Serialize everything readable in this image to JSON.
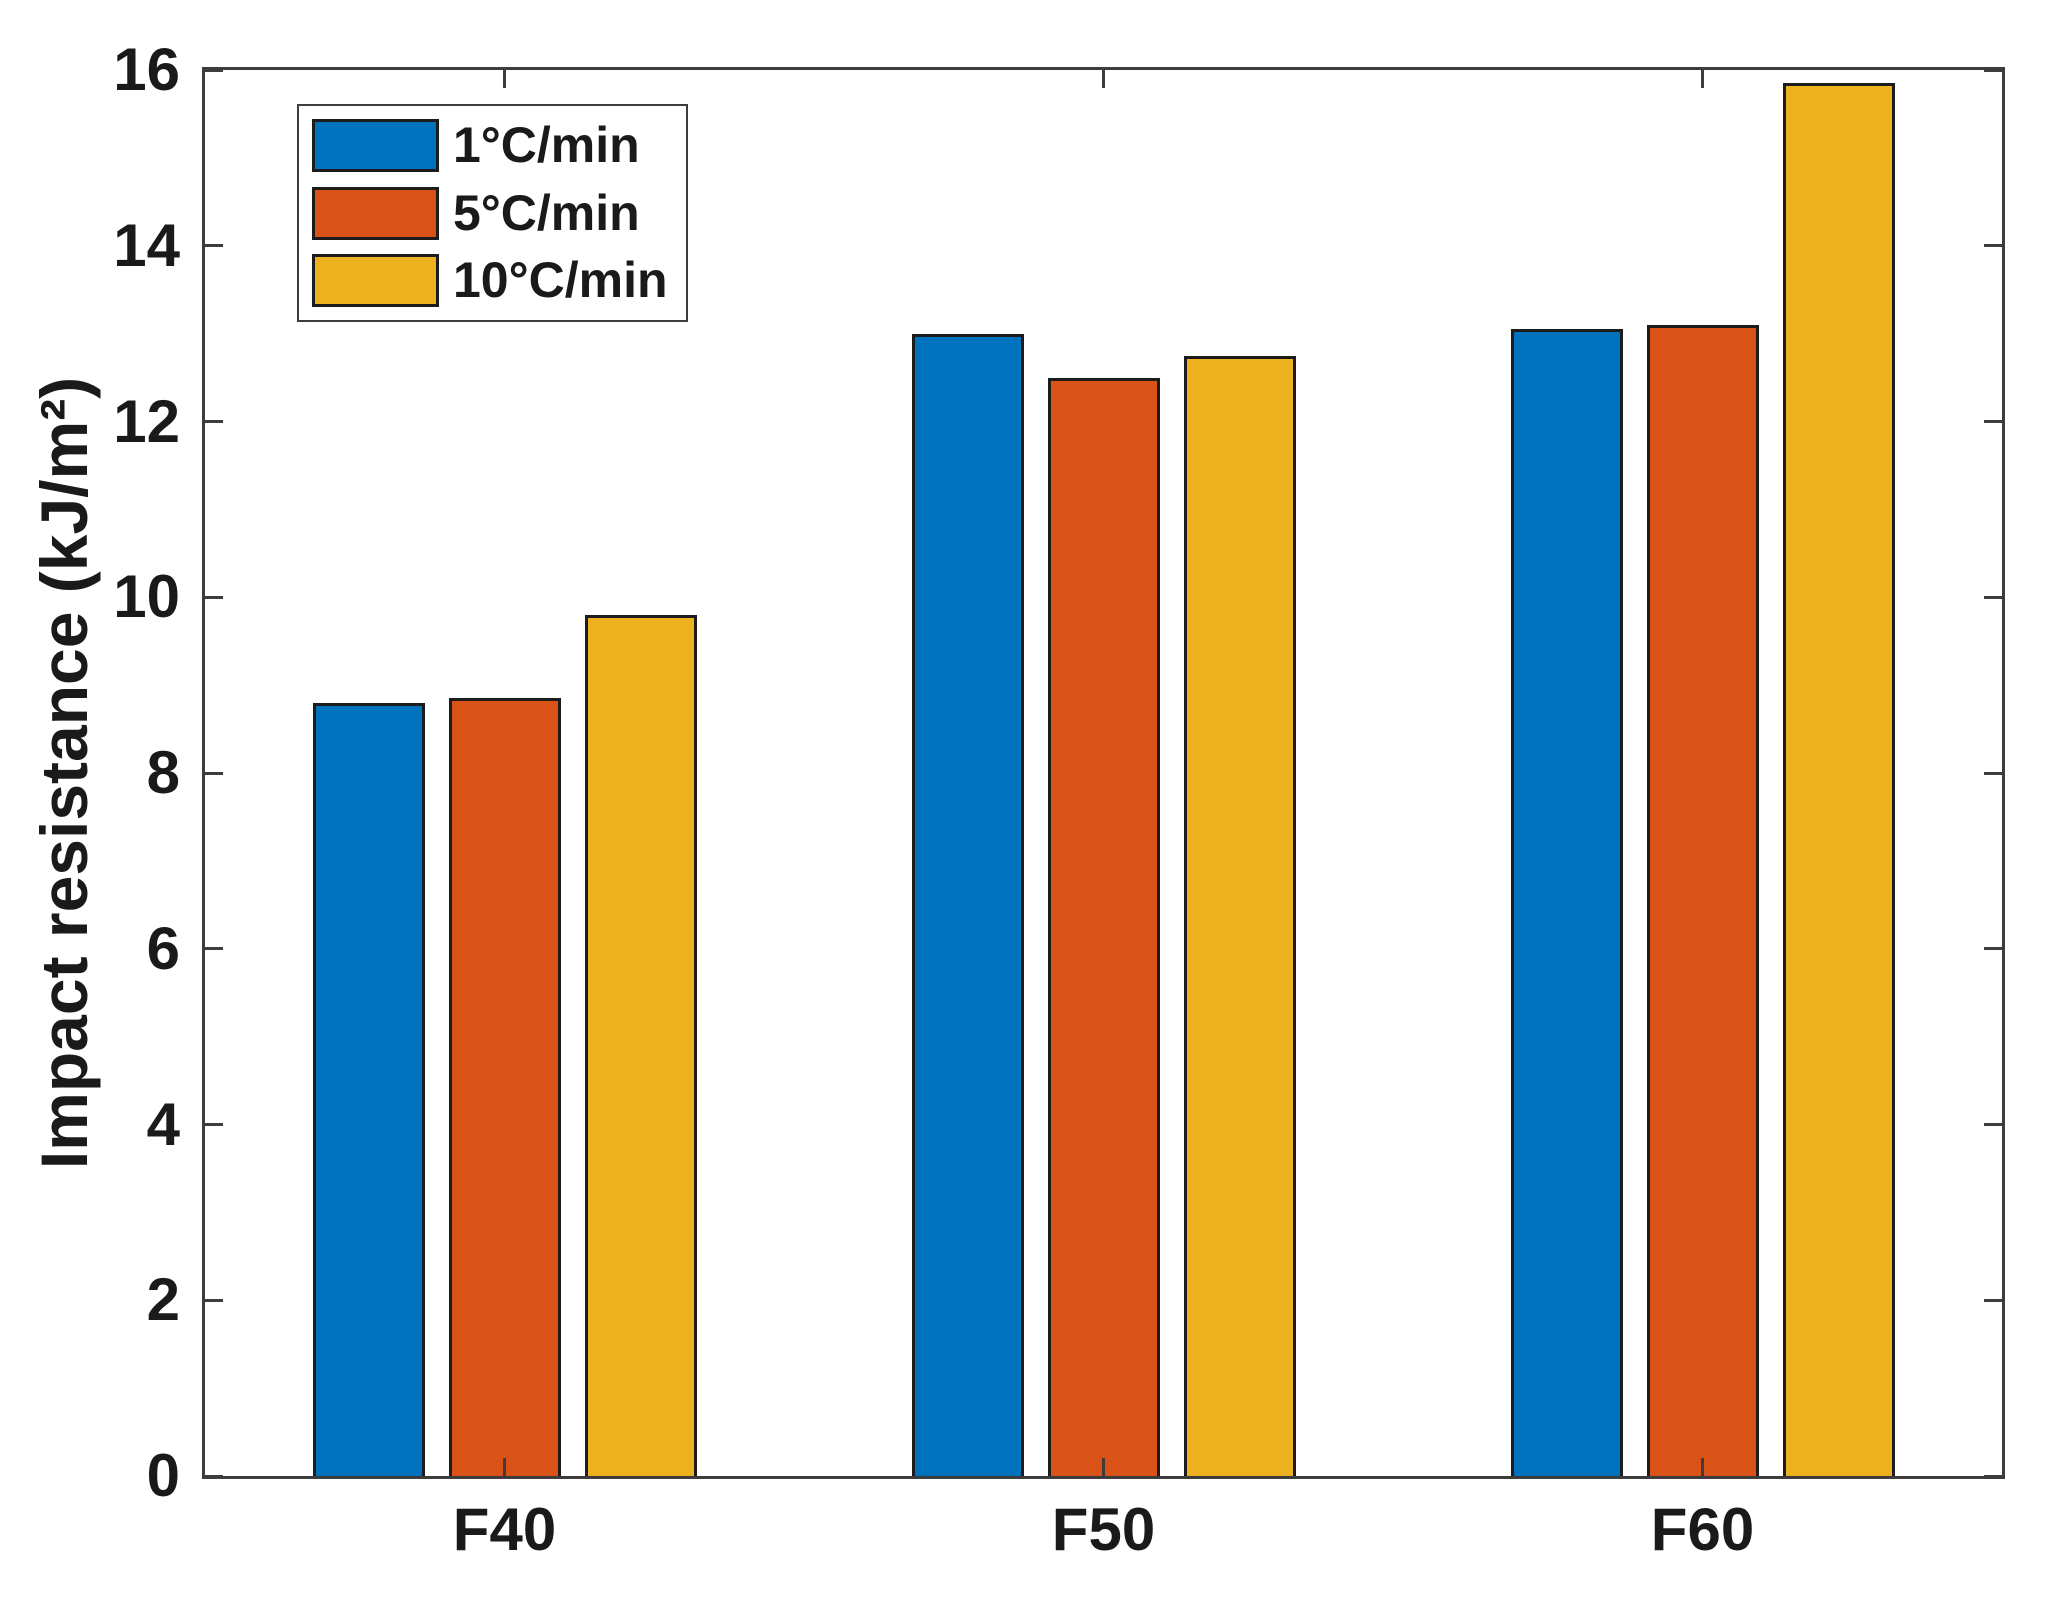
{
  "figure": {
    "background": "#ffffff"
  },
  "chart_data": {
    "type": "bar",
    "title": "",
    "xlabel": "",
    "ylabel": "Impact resistance (kJ/m²)",
    "categories": [
      "F40",
      "F50",
      "F60"
    ],
    "series": [
      {
        "name": "1°C/min",
        "color": "#0072BD",
        "values": [
          8.8,
          13.0,
          13.05
        ]
      },
      {
        "name": "5°C/min",
        "color": "#D95319",
        "values": [
          8.85,
          12.5,
          13.1
        ]
      },
      {
        "name": "10°C/min",
        "color": "#EDB120",
        "values": [
          9.8,
          12.75,
          15.85
        ]
      }
    ],
    "ylim": [
      0,
      16
    ],
    "yticks": [
      0,
      2,
      4,
      6,
      8,
      10,
      12,
      14,
      16
    ],
    "grid": false,
    "legend_position": "top-left",
    "bar_edge_color": "#1c1c1c",
    "axis_color": "#3d3d3d",
    "text_color": "#1a1a1a",
    "background_color": "#ffffff"
  }
}
